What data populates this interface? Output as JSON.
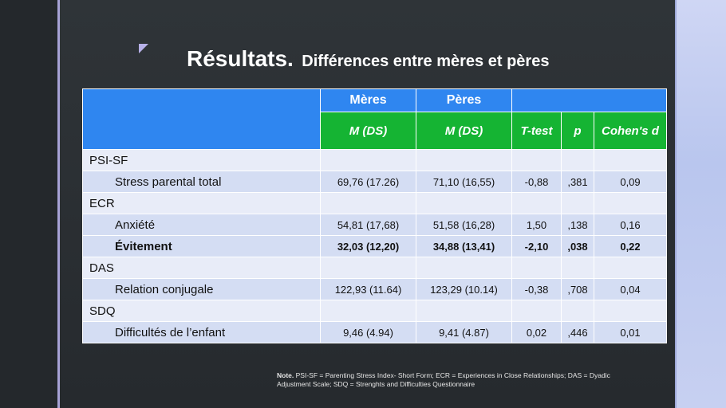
{
  "slide": {
    "title_main": "Résultats.",
    "title_sub": "Différences entre mères et pères"
  },
  "table": {
    "group_headers": [
      "Mères",
      "Pères"
    ],
    "column_headers": [
      "M (DS)",
      "M (DS)",
      "T-test",
      "p",
      "Cohen's d"
    ],
    "rows": [
      {
        "label": "PSI-SF",
        "type": "category",
        "values": [
          "",
          "",
          "",
          "",
          ""
        ]
      },
      {
        "label": "Stress parental total",
        "type": "item",
        "values": [
          "69,76 (17.26)",
          "71,10 (16,55)",
          "-0,88",
          ",381",
          "0,09"
        ]
      },
      {
        "label": "ECR",
        "type": "category",
        "values": [
          "",
          "",
          "",
          "",
          ""
        ]
      },
      {
        "label": "Anxiété",
        "type": "item",
        "values": [
          "54,81 (17,68)",
          "51,58 (16,28)",
          "1,50",
          ",138",
          "0,16"
        ]
      },
      {
        "label": "Évitement",
        "type": "item-bold",
        "values": [
          "32,03 (12,20)",
          "34,88 (13,41)",
          "-2,10",
          ",038",
          "0,22"
        ]
      },
      {
        "label": "DAS",
        "type": "category",
        "values": [
          "",
          "",
          "",
          "",
          ""
        ]
      },
      {
        "label": "Relation conjugale",
        "type": "item",
        "values": [
          "122,93 (11.64)",
          "123,29 (10.14)",
          "-0,38",
          ",708",
          "0,04"
        ]
      },
      {
        "label": "SDQ",
        "type": "category",
        "values": [
          "",
          "",
          "",
          "",
          ""
        ]
      },
      {
        "label": "Difficultés de l’enfant",
        "type": "item",
        "values": [
          "9,46 (4.94)",
          "9,41 (4.87)",
          "0,02",
          ",446",
          "0,01"
        ]
      }
    ]
  },
  "note": {
    "label": "Note.",
    "text": "PSI-SF = Parenting Stress Index- Short Form; ECR = Experiences in Close Relationships; DAS = Dyadic Adjustment Scale; SDQ = Strenghts and Difficulties Questionnaire"
  },
  "colors": {
    "header_blue": "#2f86f0",
    "header_green": "#15b433",
    "row_light": "#e8ecf8",
    "row_mid": "#d4ddf3",
    "background": "#2b3034",
    "accent_lavender": "#b7b1e8"
  }
}
